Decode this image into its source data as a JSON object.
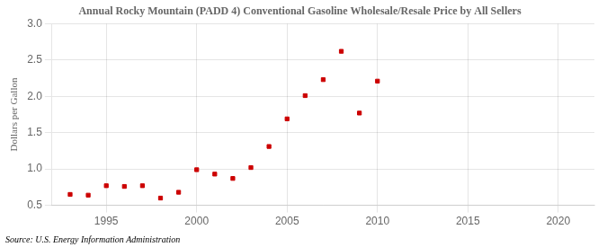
{
  "chart_data": {
    "type": "scatter",
    "title": "Annual Rocky Mountain (PADD 4) Conventional Gasoline Wholesale/Resale Price by All Sellers",
    "y_label": "Dollars per Gallon",
    "annotations": [
      "Source: U.S. Energy Information Administration"
    ],
    "x": [
      1993,
      1994,
      1995,
      1996,
      1997,
      1998,
      1999,
      2000,
      2001,
      2002,
      2003,
      2004,
      2005,
      2006,
      2007,
      2008,
      2009,
      2010
    ],
    "values": [
      0.65,
      0.64,
      0.77,
      0.76,
      0.77,
      0.6,
      0.68,
      0.99,
      0.93,
      0.87,
      1.02,
      1.31,
      1.69,
      2.01,
      2.23,
      2.62,
      1.77,
      2.21
    ],
    "color": "#cc0000",
    "marker": "square",
    "xlim": [
      1992,
      2022
    ],
    "xticks": [
      1995,
      2000,
      2005,
      2010,
      2015,
      2020
    ],
    "ylim": [
      0.5,
      3.0
    ],
    "yticks": [
      0.5,
      {
        "value": 1.0,
        "label": "1.0"
      },
      1.5,
      {
        "value": 2.0,
        "label": "2.0"
      },
      2.5,
      {
        "value": 3.0,
        "label": "3.0"
      }
    ],
    "grid": true
  }
}
